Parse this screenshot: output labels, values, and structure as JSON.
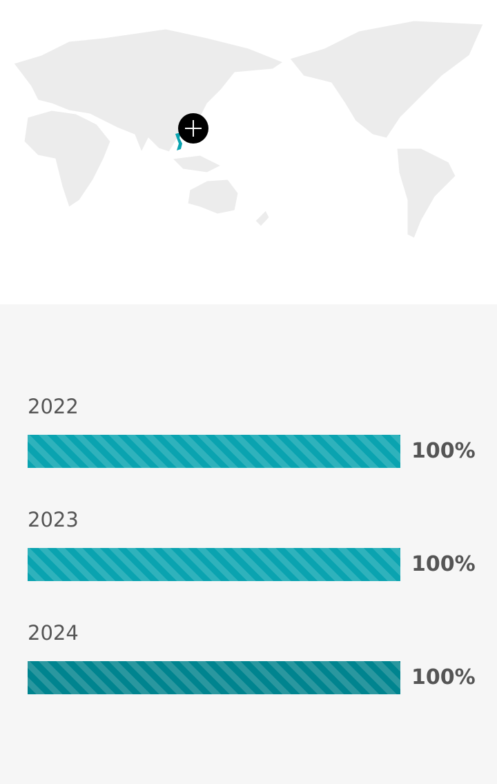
{
  "map": {
    "highlight_country": "Vietnam",
    "highlight_color": "#0aa3b0",
    "land_color": "#ececec",
    "marker_icon": "plus-icon"
  },
  "stats": [
    {
      "year": "2022",
      "value": 100,
      "label": "100%",
      "color": "#0aa3b0"
    },
    {
      "year": "2023",
      "value": 100,
      "label": "100%",
      "color": "#0aa3b0"
    },
    {
      "year": "2024",
      "value": 100,
      "label": "100%",
      "color": "#00848f"
    }
  ]
}
